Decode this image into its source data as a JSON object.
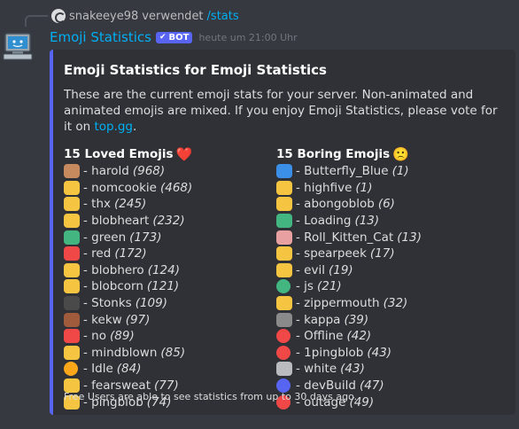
{
  "reply": {
    "username": "snakeeye98",
    "action": "verwendet",
    "command": "/stats"
  },
  "message": {
    "author": "Emoji Statistics",
    "bot_tag": "BOT",
    "timestamp": "heute um 21:00 Uhr"
  },
  "embed": {
    "title": "Emoji Statistics for Emoji Statistics",
    "description_pre": "These are the current emoji stats for your server. Non-animated and animated emojis are mixed. If you enjoy Emoji Statistics, please vote for it on ",
    "description_link": "top.gg",
    "description_post": ".",
    "footer": "Free Users are able to see statistics from up to 30 days ago.",
    "fields": [
      {
        "name": "15 Loved Emojis",
        "emoji": "❤️",
        "items": [
          {
            "name": "harold",
            "count": "(968)",
            "color": "#c68a5e"
          },
          {
            "name": "nomcookie",
            "count": "(468)",
            "color": "#f5c542"
          },
          {
            "name": "thx",
            "count": "(245)",
            "color": "#f5c542"
          },
          {
            "name": "blobheart",
            "count": "(232)",
            "color": "#f5c542"
          },
          {
            "name": "green",
            "count": "(173)",
            "color": "#43b581"
          },
          {
            "name": "red",
            "count": "(172)",
            "color": "#f04747"
          },
          {
            "name": "blobhero",
            "count": "(124)",
            "color": "#f5c542"
          },
          {
            "name": "blobcorn",
            "count": "(121)",
            "color": "#f5c542"
          },
          {
            "name": "Stonks",
            "count": "(109)",
            "color": "#4a4a4a"
          },
          {
            "name": "kekw",
            "count": "(97)",
            "color": "#a05a3c"
          },
          {
            "name": "no",
            "count": "(89)",
            "color": "#f04747"
          },
          {
            "name": "mindblown",
            "count": "(85)",
            "color": "#f5c542"
          },
          {
            "name": "Idle",
            "count": "(84)",
            "color": "#faa61a"
          },
          {
            "name": "fearsweat",
            "count": "(77)",
            "color": "#f5c542"
          },
          {
            "name": "pingblob",
            "count": "(74)",
            "color": "#f5c542"
          }
        ]
      },
      {
        "name": "15 Boring Emojis",
        "emoji": "🙁",
        "items": [
          {
            "name": "Butterfly_Blue",
            "count": "(1)",
            "color": "#3b8fe6"
          },
          {
            "name": "highfive",
            "count": "(1)",
            "color": "#f5c542"
          },
          {
            "name": "abongoblob",
            "count": "(6)",
            "color": "#f5c542"
          },
          {
            "name": "Loading",
            "count": "(13)",
            "color": "#43b581"
          },
          {
            "name": "Roll_Kitten_Cat",
            "count": "(13)",
            "color": "#e8a0a0"
          },
          {
            "name": "spearpeek",
            "count": "(17)",
            "color": "#f5c542"
          },
          {
            "name": "evil",
            "count": "(19)",
            "color": "#f5c542"
          },
          {
            "name": "js",
            "count": "(21)",
            "color": "#43b581"
          },
          {
            "name": "zippermouth",
            "count": "(32)",
            "color": "#f5c542"
          },
          {
            "name": "kappa",
            "count": "(39)",
            "color": "#8a8a8a"
          },
          {
            "name": "Offline",
            "count": "(42)",
            "color": "#f04747"
          },
          {
            "name": "1pingblob",
            "count": "(43)",
            "color": "#f04747"
          },
          {
            "name": "white",
            "count": "(43)",
            "color": "#b9bbbe"
          },
          {
            "name": "devBuild",
            "count": "(47)",
            "color": "#5865f2"
          },
          {
            "name": "outage",
            "count": "(49)",
            "color": "#f04747"
          }
        ]
      }
    ]
  }
}
